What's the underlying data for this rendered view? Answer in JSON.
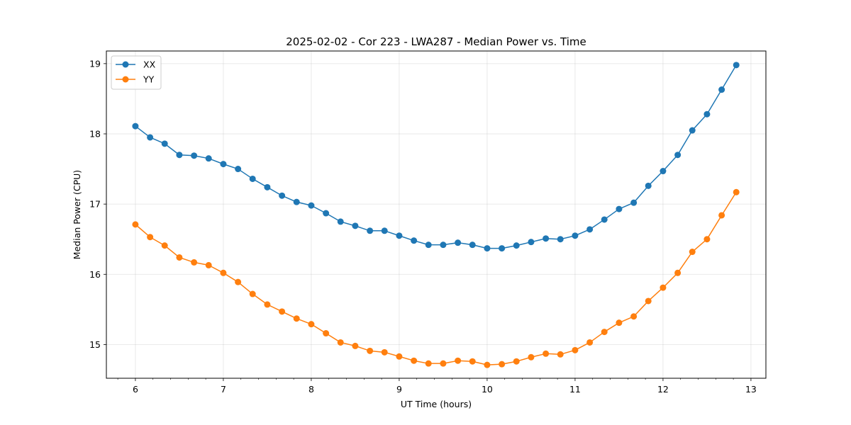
{
  "chart_data": {
    "type": "line",
    "title": "2025-02-02 - Cor 223 - LWA287 - Median Power vs. Time",
    "xlabel": "UT Time (hours)",
    "ylabel": "Median Power (CPU)",
    "xlim": [
      5.67,
      13.17
    ],
    "ylim": [
      14.52,
      19.18
    ],
    "xticks": [
      6,
      7,
      8,
      9,
      10,
      11,
      12,
      13
    ],
    "yticks": [
      15,
      16,
      17,
      18,
      19
    ],
    "grid": true,
    "legend_position": "top-left",
    "x": [
      6.0,
      6.167,
      6.333,
      6.5,
      6.667,
      6.833,
      7.0,
      7.167,
      7.333,
      7.5,
      7.667,
      7.833,
      8.0,
      8.167,
      8.333,
      8.5,
      8.667,
      8.833,
      9.0,
      9.167,
      9.333,
      9.5,
      9.667,
      9.833,
      10.0,
      10.167,
      10.333,
      10.5,
      10.667,
      10.833,
      11.0,
      11.167,
      11.333,
      11.5,
      11.667,
      11.833,
      12.0,
      12.167,
      12.333,
      12.5,
      12.667,
      12.833
    ],
    "series": [
      {
        "name": "XX",
        "color": "#1f77b4",
        "values": [
          18.11,
          17.95,
          17.86,
          17.7,
          17.69,
          17.65,
          17.57,
          17.5,
          17.36,
          17.24,
          17.12,
          17.03,
          16.98,
          16.87,
          16.75,
          16.69,
          16.62,
          16.62,
          16.55,
          16.48,
          16.42,
          16.42,
          16.45,
          16.42,
          16.37,
          16.37,
          16.41,
          16.46,
          16.51,
          16.5,
          16.55,
          16.64,
          16.78,
          16.93,
          17.02,
          17.26,
          17.47,
          17.7,
          18.05,
          18.28,
          18.63,
          18.98
        ]
      },
      {
        "name": "YY",
        "color": "#ff7f0e",
        "values": [
          16.71,
          16.53,
          16.41,
          16.24,
          16.17,
          16.13,
          16.02,
          15.89,
          15.72,
          15.57,
          15.47,
          15.37,
          15.29,
          15.16,
          15.03,
          14.98,
          14.91,
          14.89,
          14.83,
          14.77,
          14.73,
          14.73,
          14.77,
          14.76,
          14.71,
          14.72,
          14.76,
          14.82,
          14.87,
          14.86,
          14.92,
          15.03,
          15.18,
          15.31,
          15.4,
          15.62,
          15.81,
          16.02,
          16.32,
          16.5,
          16.84,
          17.17
        ]
      }
    ]
  }
}
